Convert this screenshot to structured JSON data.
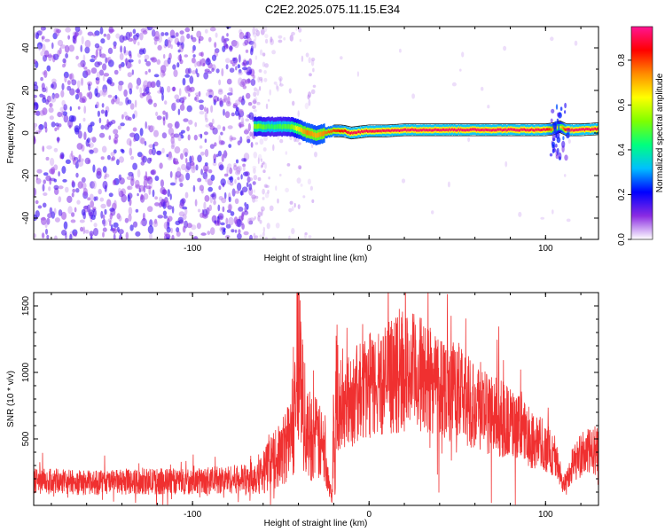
{
  "figure": {
    "title": "C2E2.2025.075.11.15.E34"
  },
  "colors": {
    "snr_line": "#f03030",
    "spectrogram_noise": "#7a28e8",
    "ridge_core": "#e8342c",
    "ridge_edge": "#00c8c8"
  },
  "chart_data": [
    {
      "type": "heatmap",
      "name": "spectrogram",
      "xlabel": "Height of straight line (km)",
      "ylabel": "Frequency (Hz)",
      "xlim": [
        -190,
        130
      ],
      "ylim": [
        -50,
        50
      ],
      "x_ticks": [
        -100,
        0,
        100
      ],
      "x_tick_labels": [
        "-100",
        "0",
        "100"
      ],
      "y_ticks": [
        -40,
        -20,
        0,
        20,
        40
      ],
      "y_tick_labels": [
        "-40",
        "-20",
        "0",
        "20",
        "40"
      ],
      "colorbar": {
        "label": "Normalized spectral amplitude",
        "range": [
          0,
          0.95
        ],
        "ticks": [
          0.0,
          0.2,
          0.4,
          0.6,
          0.8
        ],
        "tick_labels": [
          "0.0",
          "0.2",
          "0.4",
          "0.6",
          "0.8"
        ],
        "colormap": [
          "#ffffff",
          "#8a2be2",
          "#0000ff",
          "#00bfff",
          "#00ff7f",
          "#7fff00",
          "#ffff00",
          "#ff8c00",
          "#ff0000",
          "#ff1493"
        ]
      },
      "noise_region": {
        "x": [
          -190,
          -65
        ],
        "freq": [
          -50,
          50
        ],
        "amplitude": 0.15
      },
      "sparse_region": {
        "x": [
          -65,
          -30
        ],
        "freq": [
          -50,
          50
        ],
        "amplitude": 0.06
      },
      "ridge": {
        "x": [
          -65,
          -55,
          -45,
          -40,
          -35,
          -30,
          -25,
          -20,
          -15,
          -10,
          0,
          10,
          20,
          40,
          60,
          80,
          100,
          105,
          108,
          112,
          120,
          130
        ],
        "freq": [
          3,
          3,
          3,
          2,
          0,
          -1,
          0,
          1,
          1,
          0,
          1,
          1,
          1.5,
          1.5,
          1.5,
          1.5,
          1.5,
          2,
          3,
          1.5,
          1.5,
          2
        ],
        "amplitude": [
          0.55,
          0.45,
          0.5,
          0.65,
          0.75,
          0.7,
          0.75,
          0.8,
          0.85,
          0.9,
          0.9,
          0.9,
          0.92,
          0.92,
          0.92,
          0.92,
          0.9,
          0.7,
          0.6,
          0.9,
          0.92,
          0.9
        ]
      }
    },
    {
      "type": "line",
      "name": "snr",
      "xlabel": "Height of straight line (km)",
      "ylabel": "SNR (10 * v/v)",
      "xlim": [
        -190,
        130
      ],
      "ylim": [
        0,
        1600
      ],
      "x_ticks": [
        -100,
        0,
        100
      ],
      "x_tick_labels": [
        "-100",
        "0",
        "100"
      ],
      "y_ticks": [
        500,
        1000,
        1500
      ],
      "y_tick_labels": [
        "500",
        "1000",
        "1500"
      ],
      "series": [
        {
          "x": [
            -190,
            -180,
            -160,
            -140,
            -120,
            -100,
            -80,
            -70,
            -65,
            -60,
            -55,
            -50,
            -45,
            -42,
            -40,
            -38,
            -35,
            -30,
            -25,
            -21,
            -20,
            -18,
            -15,
            -10,
            -5,
            0,
            5,
            10,
            15,
            20,
            25,
            30,
            40,
            50,
            60,
            70,
            80,
            90,
            100,
            105,
            108,
            110,
            112,
            115,
            120,
            125,
            130
          ],
          "y": [
            180,
            180,
            170,
            175,
            180,
            180,
            195,
            200,
            220,
            260,
            320,
            380,
            500,
            700,
            1400,
            800,
            550,
            500,
            400,
            50,
            700,
            720,
            760,
            800,
            850,
            900,
            920,
            950,
            980,
            1000,
            1000,
            980,
            920,
            850,
            760,
            680,
            620,
            520,
            440,
            380,
            250,
            150,
            200,
            300,
            380,
            400,
            420
          ]
        }
      ]
    }
  ]
}
